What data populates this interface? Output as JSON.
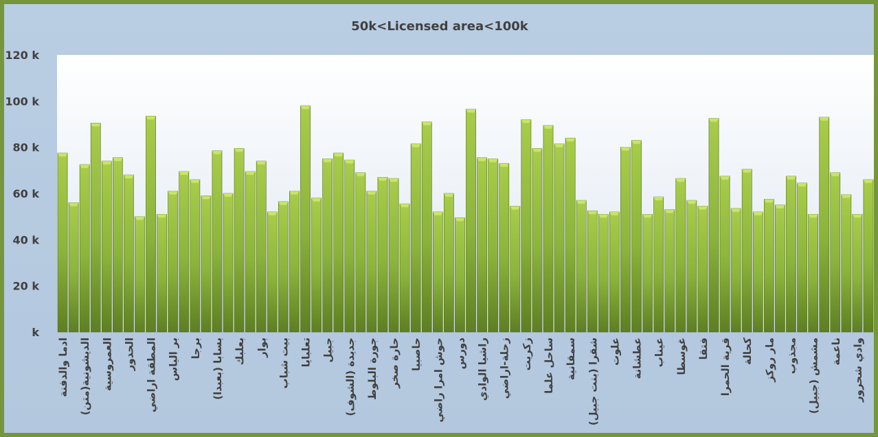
{
  "chart_data": {
    "type": "bar",
    "title": "50k<Licensed  area<100k",
    "xlabel": "",
    "ylabel": "",
    "ylim": [
      0,
      120000
    ],
    "yticks": [
      {
        "value": 0,
        "label": "k"
      },
      {
        "value": 20000,
        "label": "20 k"
      },
      {
        "value": 40000,
        "label": "40 k"
      },
      {
        "value": 60000,
        "label": "60 k"
      },
      {
        "value": 80000,
        "label": "80 k"
      },
      {
        "value": 100000,
        "label": "100 k"
      },
      {
        "value": 120000,
        "label": "120 k"
      }
    ],
    "grid": false,
    "legend": "none",
    "bar_color": "#8cb43c",
    "categories": [
      "ادما والدفنة",
      "",
      "الديشونية(متن)",
      "",
      "العمروسية",
      "",
      "الحدور",
      "",
      "المطقة اراضي",
      "",
      "بر الياس",
      "",
      "برجا",
      "",
      "بسابا (بعبدا)",
      "",
      "بعلبك",
      "",
      "بوار",
      "",
      "بيت شباب",
      "",
      "تعلبايا",
      "",
      "جبيل",
      "",
      "جديدة (الشوف)",
      "",
      "جورة البلوط",
      "",
      "حارة صخر",
      "",
      "حاصبيا",
      "",
      "حوش امرا راضي",
      "",
      "دورس",
      "",
      "راشيا الوادي",
      "",
      "زحلة-اراضي",
      "",
      "زكريت",
      "",
      "ساحل علما",
      "",
      "سمقانية",
      "",
      "شقرا (بنت جبيل)",
      "",
      "علوت",
      "",
      "عطشانة",
      "",
      "عيناب",
      "",
      "غوسطا",
      "",
      "فتقا",
      "",
      "قرية الحمرا",
      "",
      "كحالة",
      "",
      "مار روكز",
      "",
      "مجذوب",
      "",
      "مشمش (جبيل)",
      "",
      "ناعمة",
      "",
      "وادي شحرور",
      ""
    ],
    "values": [
      77500,
      56000,
      72500,
      90500,
      74000,
      75500,
      68000,
      50000,
      93500,
      51000,
      61000,
      69500,
      66000,
      59000,
      78500,
      60000,
      79500,
      69500,
      74000,
      52000,
      56500,
      61000,
      98000,
      58000,
      75000,
      77500,
      74500,
      69000,
      61000,
      67000,
      66500,
      55500,
      81500,
      91000,
      52000,
      60000,
      49500,
      96500,
      75500,
      75000,
      73000,
      54500,
      92000,
      79500,
      89500,
      81500,
      84000,
      57000,
      52500,
      51000,
      52000,
      80000,
      83000,
      51000,
      58500,
      53000,
      66500,
      57000,
      54500,
      92500,
      67500,
      53500,
      70500,
      52000,
      57500,
      55000,
      67500,
      64500,
      51000,
      93000,
      69000,
      59500,
      51000,
      66000
    ]
  }
}
